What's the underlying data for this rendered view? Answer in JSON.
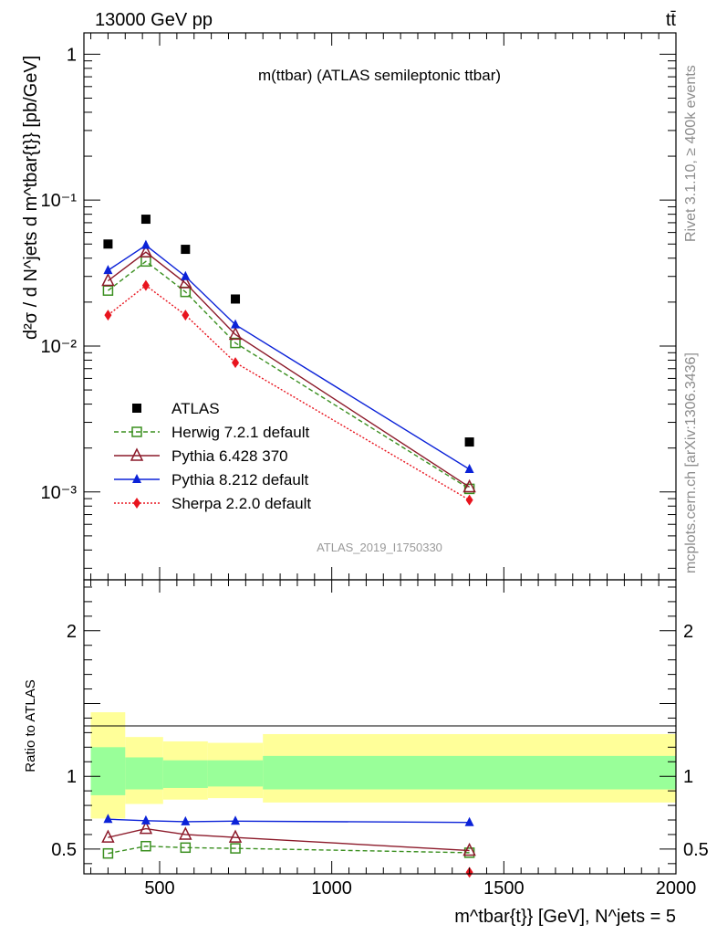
{
  "header": {
    "left": "13000 GeV pp",
    "right": "tt̄"
  },
  "side_labels": {
    "rivet": "Rivet 3.1.10, ≥ 400k events",
    "mcplots": "mcplots.cern.ch [arXiv:1306.3436]"
  },
  "colors": {
    "atlas": "#000000",
    "herwig": "#3a8f1f",
    "pythia6": "#8c1a2a",
    "pythia8": "#0b22d8",
    "sherpa": "#e8141e",
    "band_inner": "#99ff99",
    "band_outer": "#ffff99"
  },
  "chart_data": [
    {
      "type": "line",
      "name": "main",
      "title": "m(ttbar) (ATLAS semileptonic ttbar)",
      "analysis_tag": "ATLAS_2019_I1750330",
      "ylabel": "d²σ / d N^jets d m^tbar{t}} [pb/GeV]",
      "yscale": "log",
      "ylim": [
        0.00025,
        1.4
      ],
      "xlim": [
        280,
        2000
      ],
      "ytick_labels": [
        {
          "value": 1,
          "text": "1"
        },
        {
          "value": 0.1,
          "text": "10⁻¹"
        },
        {
          "value": 0.01,
          "text": "10⁻²"
        },
        {
          "value": 0.001,
          "text": "10⁻³"
        }
      ],
      "legend": [
        {
          "label": "ATLAS",
          "series": "atlas"
        },
        {
          "label": "Herwig 7.2.1 default",
          "series": "herwig"
        },
        {
          "label": "Pythia 6.428 370",
          "series": "pythia6"
        },
        {
          "label": "Pythia 8.212 default",
          "series": "pythia8"
        },
        {
          "label": "Sherpa 2.2.0 default",
          "series": "sherpa"
        }
      ],
      "x": [
        350,
        460,
        575,
        720,
        1400
      ],
      "series": [
        {
          "name": "atlas",
          "values": [
            0.05,
            0.074,
            0.046,
            0.021,
            0.0022
          ]
        },
        {
          "name": "herwig",
          "values": [
            0.024,
            0.038,
            0.0235,
            0.0105,
            0.00105
          ]
        },
        {
          "name": "pythia6",
          "values": [
            0.028,
            0.044,
            0.027,
            0.012,
            0.00108
          ]
        },
        {
          "name": "pythia8",
          "values": [
            0.033,
            0.049,
            0.03,
            0.014,
            0.00143
          ]
        },
        {
          "name": "sherpa",
          "values": [
            0.0163,
            0.026,
            0.0163,
            0.0077,
            0.00088
          ]
        }
      ]
    },
    {
      "type": "line",
      "name": "ratio",
      "ylabel": "Ratio to ATLAS",
      "xlabel": "m^tbar{t}} [GeV], N^jets = 5",
      "ylim": [
        0.33,
        2.35
      ],
      "xlim": [
        280,
        2000
      ],
      "ytick_labels": [
        {
          "value": 2,
          "text": "2"
        },
        {
          "value": 1,
          "text": "1"
        },
        {
          "value": 0.5,
          "text": "0.5"
        }
      ],
      "xtick_labels": [
        {
          "value": 500,
          "text": "500"
        },
        {
          "value": 1000,
          "text": "1000"
        },
        {
          "value": 1500,
          "text": "1500"
        },
        {
          "value": 2000,
          "text": "2000"
        }
      ],
      "x": [
        350,
        460,
        575,
        720,
        1400
      ],
      "bands": [
        {
          "xlo": 300,
          "xhi": 400,
          "inner": [
            0.87,
            1.2
          ],
          "outer": [
            0.71,
            1.44
          ]
        },
        {
          "xlo": 400,
          "xhi": 510,
          "inner": [
            0.91,
            1.13
          ],
          "outer": [
            0.81,
            1.27
          ]
        },
        {
          "xlo": 510,
          "xhi": 640,
          "inner": [
            0.92,
            1.11
          ],
          "outer": [
            0.84,
            1.24
          ]
        },
        {
          "xlo": 640,
          "xhi": 800,
          "inner": [
            0.93,
            1.11
          ],
          "outer": [
            0.85,
            1.23
          ]
        },
        {
          "xlo": 800,
          "xhi": 2000,
          "inner": [
            0.91,
            1.14
          ],
          "outer": [
            0.82,
            1.29
          ]
        }
      ],
      "series": [
        {
          "name": "herwig",
          "values": [
            0.47,
            0.52,
            0.51,
            0.505,
            0.475
          ]
        },
        {
          "name": "pythia6",
          "values": [
            0.58,
            0.64,
            0.6,
            0.58,
            0.49
          ]
        },
        {
          "name": "pythia8",
          "values": [
            0.705,
            0.695,
            0.688,
            0.692,
            0.683
          ]
        },
        {
          "name": "sherpa",
          "values": [
            null,
            null,
            null,
            null,
            0.34
          ]
        }
      ]
    }
  ]
}
